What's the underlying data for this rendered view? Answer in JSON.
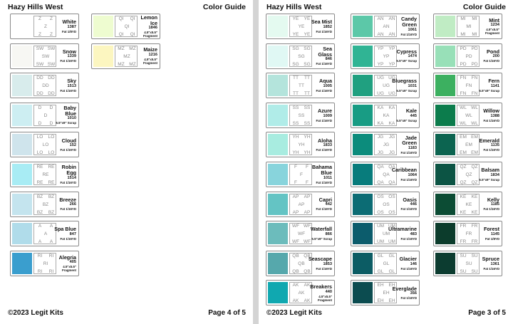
{
  "pages": [
    {
      "header": {
        "title": "Hazy Hills West",
        "subtitle": "Color Guide"
      },
      "columns": [
        [
          {
            "name": "White",
            "number": "1387",
            "size": "Fat 1/8YD",
            "code": "Z",
            "color": "#ffffff"
          },
          {
            "name": "Snow",
            "number": "1339",
            "size": "Fat 1/16YD",
            "code": "SW",
            "color": "#f7f7f3"
          },
          {
            "name": "Sky",
            "number": "1513",
            "size": "Fat 1/16YD",
            "code": "DD",
            "color": "#d8ecec"
          },
          {
            "name": "Baby Blue",
            "number": "1010",
            "size": "5.5\"x9\" Scrap",
            "code": "D",
            "color": "#cdeef2"
          },
          {
            "name": "Cloud",
            "number": "152",
            "size": "Fat 1/16YD",
            "code": "LO",
            "color": "#cfe4ec"
          },
          {
            "name": "Robin Egg",
            "number": "1514",
            "size": "Fat 1/16YD",
            "code": "RE",
            "color": "#a8ecf4"
          },
          {
            "name": "Breeze",
            "number": "266",
            "size": "Fat 1/16YD",
            "code": "BZ",
            "color": "#c4e4ee"
          },
          {
            "name": "Spa Blue",
            "number": "847",
            "size": "Fat 1/16YD",
            "code": "A",
            "color": "#b0dcea"
          },
          {
            "name": "Alegria",
            "number": "405",
            "size": "4.5\"x5.5\" Fragment",
            "code": "RI",
            "color": "#3a9ece"
          }
        ],
        [
          {
            "name": "Lemon Ice",
            "number": "1846",
            "size": "4.5\"x5.5\" Fragment",
            "code": "QI",
            "color": "#eefcd0"
          },
          {
            "name": "Maize",
            "number": "1216",
            "size": "4.5\"x5.5\" Fragment",
            "code": "MZ",
            "color": "#fcf6c0"
          }
        ]
      ],
      "footer": {
        "copyright": "©2023 Legit Kits",
        "page": "Page 4 of 5"
      }
    },
    {
      "header": {
        "title": "Hazy Hills West",
        "subtitle": "Color Guide"
      },
      "columns": [
        [
          {
            "name": "Sea Mist",
            "number": "1852",
            "size": "Fat 1/16YD",
            "code": "YE",
            "color": "#e4faf0"
          },
          {
            "name": "Sea Glass",
            "number": "846",
            "size": "Fat 1/16YD",
            "code": "SG",
            "color": "#e0f8f4"
          },
          {
            "name": "Aqua",
            "number": "1005",
            "size": "Fat 1/16YD",
            "code": "TT",
            "color": "#b4e4dc"
          },
          {
            "name": "Azure",
            "number": "1009",
            "size": "Fat 1/16YD",
            "code": "SS",
            "color": "#b0ece8"
          },
          {
            "name": "Aloha",
            "number": "1833",
            "size": "Fat 1/16YD",
            "code": "YH",
            "color": "#a8ece0"
          },
          {
            "name": "Bahama Blue",
            "number": "1011",
            "size": "Fat 1/16YD",
            "code": "F",
            "color": "#88d4dc"
          },
          {
            "name": "Capri",
            "number": "442",
            "size": "Fat 1/16YD",
            "code": "AP",
            "color": "#64c4c4"
          },
          {
            "name": "Waterfall",
            "number": "866",
            "size": "5.5\"x9\" Scrap",
            "code": "WF",
            "color": "#6cbcbc"
          },
          {
            "name": "Seascape",
            "number": "1853",
            "size": "Fat 1/16YD",
            "code": "QB",
            "color": "#56a8ac"
          },
          {
            "name": "Breakers",
            "number": "440",
            "size": "4.5\"x5.5\" Fragment",
            "code": "AK",
            "color": "#10a8b0"
          }
        ],
        [
          {
            "name": "Candy Green",
            "number": "1061",
            "size": "Fat 1/16YD",
            "code": "AN",
            "color": "#5cc8a8"
          },
          {
            "name": "Cypress",
            "number": "1474",
            "size": "5.5\"x9\" Scrap",
            "code": "YP",
            "color": "#30b494"
          },
          {
            "name": "Bluegrass",
            "number": "1031",
            "size": "5.5\"x9\" Scrap",
            "code": "UG",
            "color": "#20a080"
          },
          {
            "name": "Kale",
            "number": "445",
            "size": "5.5\"x9\" Scrap",
            "code": "KA",
            "color": "#189c84"
          },
          {
            "name": "Jade Green",
            "number": "1183",
            "size": "Fat 1/16YD",
            "code": "JG",
            "color": "#0c8c7c"
          },
          {
            "name": "Caribbean",
            "number": "1064",
            "size": "Fat 1/16YD",
            "code": "QA",
            "color": "#087c7c"
          },
          {
            "name": "Oasis",
            "number": "446",
            "size": "Fat 1/16YD",
            "code": "OS",
            "color": "#0c6c74"
          },
          {
            "name": "Ultramarine",
            "number": "483",
            "size": "Fat 1/16YD",
            "code": "UM",
            "color": "#0c5c6c"
          },
          {
            "name": "Glacier",
            "number": "146",
            "size": "Fat 1/16YD",
            "code": "GL",
            "color": "#0c5c64"
          },
          {
            "name": "Everglade",
            "number": "356",
            "size": "Fat 1/16YD",
            "code": "EH",
            "color": "#0c4c50"
          }
        ],
        [
          {
            "name": "Mint",
            "number": "1234",
            "size": "4.5\"x5.5\" Fragment",
            "code": "MI",
            "color": "#c0ecc4"
          },
          {
            "name": "Pond",
            "number": "200",
            "size": "Fat 1/16YD",
            "code": "PD",
            "color": "#98e0b8"
          },
          {
            "name": "Fern",
            "number": "1141",
            "size": "5.5\"x9\" Scrap",
            "code": "FN",
            "color": "#3cb060"
          },
          {
            "name": "Willow",
            "number": "1388",
            "size": "Fat 1/16YD",
            "code": "WL",
            "color": "#0c7c4c"
          },
          {
            "name": "Emerald",
            "number": "1135",
            "size": "Fat 1/16YD",
            "code": "EM",
            "color": "#0c6450"
          },
          {
            "name": "Balsam",
            "number": "1834",
            "size": "5.5\"x9\" Scrap",
            "code": "QZ",
            "color": "#0c5444"
          },
          {
            "name": "Kelly",
            "number": "1185",
            "size": "Fat 1/16YD",
            "code": "KE",
            "color": "#0c4c34"
          },
          {
            "name": "Forest",
            "number": "1145",
            "size": "Fat 1/8YD",
            "code": "FR",
            "color": "#0c3c2c"
          },
          {
            "name": "Spruce",
            "number": "1361",
            "size": "Fat 1/16YD",
            "code": "SU",
            "color": "#0c3c30"
          }
        ]
      ],
      "footer": {
        "copyright": "©2023 Legit Kits",
        "page": "Page 3 of 5"
      }
    }
  ]
}
